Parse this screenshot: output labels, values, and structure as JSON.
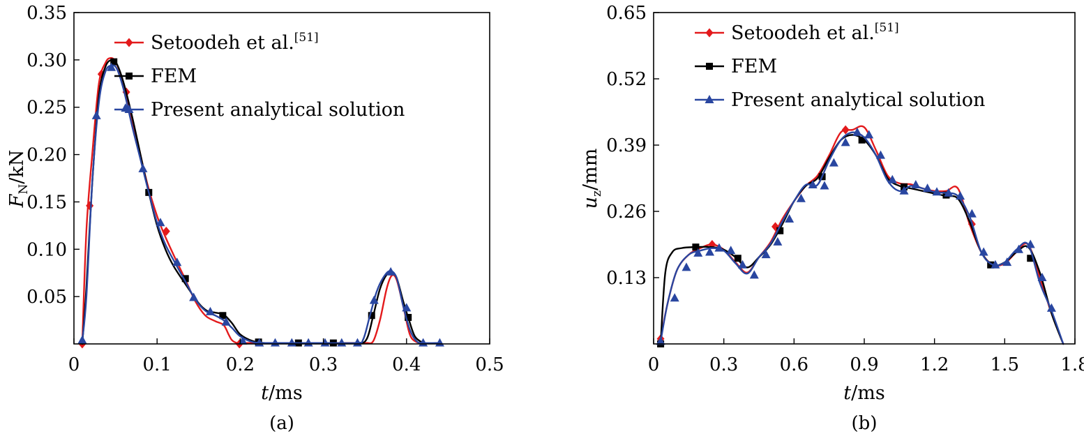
{
  "chart_data": [
    {
      "type": "line",
      "panel_label": "(a)",
      "xlabel": {
        "italic": "t",
        "rest": "/ms"
      },
      "ylabel": {
        "italic": "F",
        "sub": "N",
        "rest": "/kN"
      },
      "xlim": [
        0,
        0.5
      ],
      "ylim": [
        0,
        0.35
      ],
      "xticks": [
        0,
        0.1,
        0.2,
        0.3,
        0.4,
        0.5
      ],
      "xtick_labels": [
        "0",
        "0.1",
        "0.2",
        "0.3",
        "0.4",
        "0.5"
      ],
      "yticks": [
        0.05,
        0.1,
        0.15,
        0.2,
        0.25,
        0.3,
        0.35
      ],
      "ytick_labels": [
        "0.05",
        "0.10",
        "0.15",
        "0.20",
        "0.25",
        "0.30",
        "0.35"
      ],
      "grid": false,
      "legend_position": "top-right",
      "series": [
        {
          "name": "Setoodeh et al.",
          "name_sup": "[51]",
          "color": "#e31a1c",
          "marker": "diamond",
          "x": [
            0.01,
            0.015,
            0.022,
            0.03,
            0.038,
            0.044,
            0.05,
            0.058,
            0.066,
            0.076,
            0.088,
            0.1,
            0.11,
            0.122,
            0.134,
            0.146,
            0.158,
            0.17,
            0.18,
            0.186,
            0.19,
            0.196,
            0.205,
            0.22,
            0.26,
            0.3,
            0.34,
            0.352,
            0.36,
            0.368,
            0.376,
            0.382,
            0.388,
            0.396,
            0.404,
            0.412,
            0.42
          ],
          "y": [
            0.0,
            0.12,
            0.2,
            0.275,
            0.297,
            0.302,
            0.298,
            0.28,
            0.25,
            0.215,
            0.17,
            0.135,
            0.113,
            0.09,
            0.068,
            0.045,
            0.03,
            0.024,
            0.02,
            0.01,
            0.004,
            0.001,
            0.001,
            0.001,
            0.001,
            0.001,
            0.001,
            0.001,
            0.003,
            0.025,
            0.058,
            0.072,
            0.068,
            0.04,
            0.01,
            0.002,
            0.001
          ],
          "marker_x": [
            0.01,
            0.019,
            0.033,
            0.063,
            0.111,
            0.199
          ],
          "marker_y": [
            0.0,
            0.146,
            0.285,
            0.266,
            0.119,
            0.0
          ]
        },
        {
          "name": "FEM",
          "color": "#000000",
          "marker": "square",
          "x": [
            0.01,
            0.015,
            0.022,
            0.03,
            0.038,
            0.046,
            0.052,
            0.06,
            0.07,
            0.08,
            0.09,
            0.1,
            0.11,
            0.12,
            0.135,
            0.15,
            0.16,
            0.17,
            0.18,
            0.19,
            0.2,
            0.215,
            0.23,
            0.26,
            0.3,
            0.34,
            0.352,
            0.36,
            0.368,
            0.376,
            0.382,
            0.388,
            0.396,
            0.402,
            0.41,
            0.42
          ],
          "y": [
            0.0,
            0.06,
            0.17,
            0.262,
            0.293,
            0.3,
            0.295,
            0.275,
            0.24,
            0.2,
            0.16,
            0.125,
            0.1,
            0.082,
            0.062,
            0.043,
            0.035,
            0.033,
            0.031,
            0.022,
            0.01,
            0.003,
            0.001,
            0.001,
            0.001,
            0.001,
            0.005,
            0.03,
            0.058,
            0.073,
            0.075,
            0.07,
            0.045,
            0.028,
            0.008,
            0.001
          ],
          "marker_x": [
            0.048,
            0.09,
            0.134,
            0.179,
            0.222,
            0.27,
            0.312,
            0.358,
            0.402
          ],
          "marker_y": [
            0.298,
            0.16,
            0.069,
            0.03,
            0.002,
            0.001,
            0.001,
            0.03,
            0.028
          ]
        },
        {
          "name": "Present analytical solution",
          "color": "#2946a0",
          "marker": "triangle",
          "x": [
            0.01,
            0.015,
            0.022,
            0.03,
            0.038,
            0.046,
            0.052,
            0.06,
            0.07,
            0.08,
            0.09,
            0.1,
            0.11,
            0.122,
            0.134,
            0.146,
            0.158,
            0.17,
            0.18,
            0.19,
            0.2,
            0.215,
            0.23,
            0.26,
            0.3,
            0.34,
            0.348,
            0.356,
            0.364,
            0.372,
            0.38,
            0.388,
            0.396,
            0.404,
            0.412,
            0.42,
            0.44
          ],
          "y": [
            0.003,
            0.05,
            0.17,
            0.255,
            0.288,
            0.294,
            0.29,
            0.268,
            0.23,
            0.195,
            0.16,
            0.128,
            0.105,
            0.085,
            0.066,
            0.047,
            0.035,
            0.03,
            0.025,
            0.017,
            0.008,
            0.002,
            0.001,
            0.001,
            0.001,
            0.001,
            0.005,
            0.03,
            0.055,
            0.07,
            0.077,
            0.07,
            0.04,
            0.015,
            0.003,
            0.001,
            0.001
          ],
          "marker_x": [
            0.01,
            0.027,
            0.045,
            0.062,
            0.083,
            0.104,
            0.124,
            0.144,
            0.164,
            0.183,
            0.203,
            0.223,
            0.242,
            0.262,
            0.282,
            0.302,
            0.322,
            0.341,
            0.361,
            0.381,
            0.4,
            0.42,
            0.44
          ],
          "marker_y": [
            0.004,
            0.241,
            0.292,
            0.249,
            0.185,
            0.128,
            0.086,
            0.049,
            0.034,
            0.023,
            0.003,
            0.001,
            0.001,
            0.001,
            0.001,
            0.001,
            0.001,
            0.001,
            0.046,
            0.076,
            0.038,
            0.001,
            0.001
          ]
        }
      ]
    },
    {
      "type": "line",
      "panel_label": "(b)",
      "xlabel": {
        "italic": "t",
        "rest": "/ms"
      },
      "ylabel": {
        "italic": "u",
        "sub": "z",
        "rest": "/mm"
      },
      "xlim": [
        0,
        1.8
      ],
      "ylim": [
        0,
        0.65
      ],
      "xticks": [
        0,
        0.3,
        0.6,
        0.9,
        1.2,
        1.5,
        1.8
      ],
      "xtick_labels": [
        "0",
        "0.3",
        "0.6",
        "0.9",
        "1.2",
        "1.5",
        "1.8"
      ],
      "yticks": [
        0.13,
        0.26,
        0.39,
        0.52,
        0.65
      ],
      "ytick_labels": [
        "0.13",
        "0.26",
        "0.39",
        "0.52",
        "0.65"
      ],
      "grid": false,
      "legend_position": "top-right",
      "series": [
        {
          "name": "Setoodeh et al.",
          "name_sup": "[51]",
          "color": "#e31a1c",
          "marker": "diamond",
          "x": [
            0.03,
            0.06,
            0.1,
            0.15,
            0.2,
            0.25,
            0.3,
            0.35,
            0.4,
            0.45,
            0.5,
            0.55,
            0.6,
            0.65,
            0.7,
            0.75,
            0.8,
            0.85,
            0.9,
            0.95,
            1.0,
            1.05,
            1.1,
            1.15,
            1.2,
            1.25,
            1.3,
            1.35,
            1.4,
            1.45,
            1.5,
            1.55,
            1.6,
            1.65,
            1.7,
            1.75
          ],
          "y": [
            0.01,
            0.08,
            0.145,
            0.175,
            0.188,
            0.195,
            0.185,
            0.16,
            0.14,
            0.17,
            0.2,
            0.245,
            0.28,
            0.31,
            0.33,
            0.37,
            0.415,
            0.42,
            0.425,
            0.38,
            0.33,
            0.315,
            0.313,
            0.305,
            0.3,
            0.3,
            0.305,
            0.235,
            0.18,
            0.155,
            0.158,
            0.18,
            0.195,
            0.13,
            0.06,
            0.0
          ],
          "marker_x": [
            0.03,
            0.25,
            0.52,
            0.82,
            1.36
          ],
          "marker_y": [
            0.01,
            0.195,
            0.23,
            0.42,
            0.235
          ]
        },
        {
          "name": "FEM",
          "color": "#000000",
          "marker": "square",
          "x": [
            0.03,
            0.05,
            0.08,
            0.12,
            0.18,
            0.25,
            0.3,
            0.35,
            0.4,
            0.45,
            0.5,
            0.55,
            0.6,
            0.65,
            0.7,
            0.75,
            0.8,
            0.85,
            0.9,
            0.95,
            1.0,
            1.05,
            1.1,
            1.15,
            1.2,
            1.25,
            1.3,
            1.35,
            1.4,
            1.45,
            1.5,
            1.55,
            1.6,
            1.65,
            1.7,
            1.75
          ],
          "y": [
            0.0,
            0.14,
            0.18,
            0.188,
            0.19,
            0.19,
            0.185,
            0.17,
            0.15,
            0.17,
            0.195,
            0.235,
            0.28,
            0.31,
            0.325,
            0.365,
            0.4,
            0.41,
            0.4,
            0.37,
            0.325,
            0.31,
            0.305,
            0.3,
            0.295,
            0.29,
            0.285,
            0.24,
            0.18,
            0.155,
            0.16,
            0.18,
            0.19,
            0.14,
            0.06,
            0.0
          ],
          "marker_x": [
            0.03,
            0.18,
            0.36,
            0.54,
            0.72,
            0.89,
            1.07,
            1.25,
            1.44,
            1.61
          ],
          "marker_y": [
            0.0,
            0.19,
            0.168,
            0.222,
            0.328,
            0.4,
            0.308,
            0.292,
            0.155,
            0.168
          ]
        },
        {
          "name": "Present analytical solution",
          "color": "#2946a0",
          "marker": "triangle",
          "x": [
            0.03,
            0.06,
            0.1,
            0.15,
            0.2,
            0.25,
            0.3,
            0.35,
            0.4,
            0.45,
            0.5,
            0.55,
            0.6,
            0.65,
            0.7,
            0.75,
            0.8,
            0.85,
            0.9,
            0.95,
            1.0,
            1.05,
            1.1,
            1.15,
            1.2,
            1.25,
            1.3,
            1.35,
            1.4,
            1.45,
            1.5,
            1.55,
            1.6,
            1.65,
            1.7,
            1.75
          ],
          "y": [
            0.005,
            0.08,
            0.145,
            0.175,
            0.183,
            0.188,
            0.183,
            0.158,
            0.138,
            0.17,
            0.197,
            0.24,
            0.28,
            0.312,
            0.312,
            0.36,
            0.4,
            0.415,
            0.405,
            0.37,
            0.32,
            0.3,
            0.31,
            0.305,
            0.298,
            0.296,
            0.29,
            0.25,
            0.18,
            0.155,
            0.16,
            0.185,
            0.195,
            0.12,
            0.065,
            0.0
          ],
          "marker_x": [
            0.03,
            0.09,
            0.14,
            0.19,
            0.24,
            0.28,
            0.33,
            0.38,
            0.43,
            0.48,
            0.53,
            0.58,
            0.63,
            0.68,
            0.73,
            0.77,
            0.82,
            0.87,
            0.92,
            0.97,
            1.02,
            1.07,
            1.12,
            1.17,
            1.21,
            1.26,
            1.31,
            1.36,
            1.41,
            1.46,
            1.51,
            1.56,
            1.61,
            1.66,
            1.7
          ],
          "marker_y": [
            0.005,
            0.09,
            0.15,
            0.178,
            0.18,
            0.188,
            0.183,
            0.155,
            0.135,
            0.175,
            0.2,
            0.245,
            0.285,
            0.312,
            0.31,
            0.355,
            0.395,
            0.415,
            0.41,
            0.37,
            0.322,
            0.3,
            0.312,
            0.305,
            0.298,
            0.296,
            0.29,
            0.255,
            0.18,
            0.155,
            0.16,
            0.185,
            0.195,
            0.13,
            0.07
          ]
        }
      ]
    }
  ]
}
